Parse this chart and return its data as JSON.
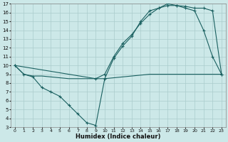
{
  "xlabel": "Humidex (Indice chaleur)",
  "background_color": "#cce8e8",
  "grid_color": "#aacccc",
  "line_color": "#1a6060",
  "xlim": [
    -0.5,
    23.5
  ],
  "ylim": [
    3,
    17
  ],
  "xticks": [
    0,
    1,
    2,
    3,
    4,
    5,
    6,
    7,
    8,
    9,
    10,
    11,
    12,
    13,
    14,
    15,
    16,
    17,
    18,
    19,
    20,
    21,
    22,
    23
  ],
  "yticks": [
    3,
    4,
    5,
    6,
    7,
    8,
    9,
    10,
    11,
    12,
    13,
    14,
    15,
    16,
    17
  ],
  "line1_x": [
    0,
    1,
    2,
    3,
    4,
    5,
    6,
    7,
    8,
    9,
    10,
    11,
    12,
    13,
    14,
    15,
    16,
    17,
    18,
    19,
    20,
    21,
    22,
    23
  ],
  "line1_y": [
    10,
    9,
    8.8,
    8.8,
    8.7,
    8.6,
    8.5,
    8.5,
    8.5,
    8.5,
    8.5,
    8.6,
    8.7,
    8.8,
    8.9,
    9.0,
    9.0,
    9.0,
    9.0,
    9.0,
    9.0,
    9.0,
    9.0,
    9.0
  ],
  "line2_x": [
    0,
    1,
    2,
    3,
    4,
    5,
    6,
    7,
    8,
    9,
    10,
    11,
    12,
    13,
    14,
    15,
    16,
    17,
    18,
    19,
    20,
    21,
    22,
    23
  ],
  "line2_y": [
    10,
    9,
    8.7,
    7.5,
    7.0,
    6.5,
    5.5,
    4.5,
    3.5,
    3.2,
    8.5,
    10.8,
    12.2,
    13.3,
    15.0,
    16.2,
    16.5,
    17.0,
    16.8,
    16.5,
    16.2,
    14.0,
    11.0,
    9.0
  ],
  "line3_x": [
    0,
    9,
    10,
    11,
    12,
    13,
    14,
    15,
    16,
    17,
    18,
    19,
    20,
    21,
    22,
    23
  ],
  "line3_y": [
    10,
    8.5,
    9.0,
    11.0,
    12.5,
    13.5,
    14.8,
    15.8,
    16.5,
    16.8,
    16.8,
    16.7,
    16.5,
    16.5,
    16.2,
    9.0
  ]
}
